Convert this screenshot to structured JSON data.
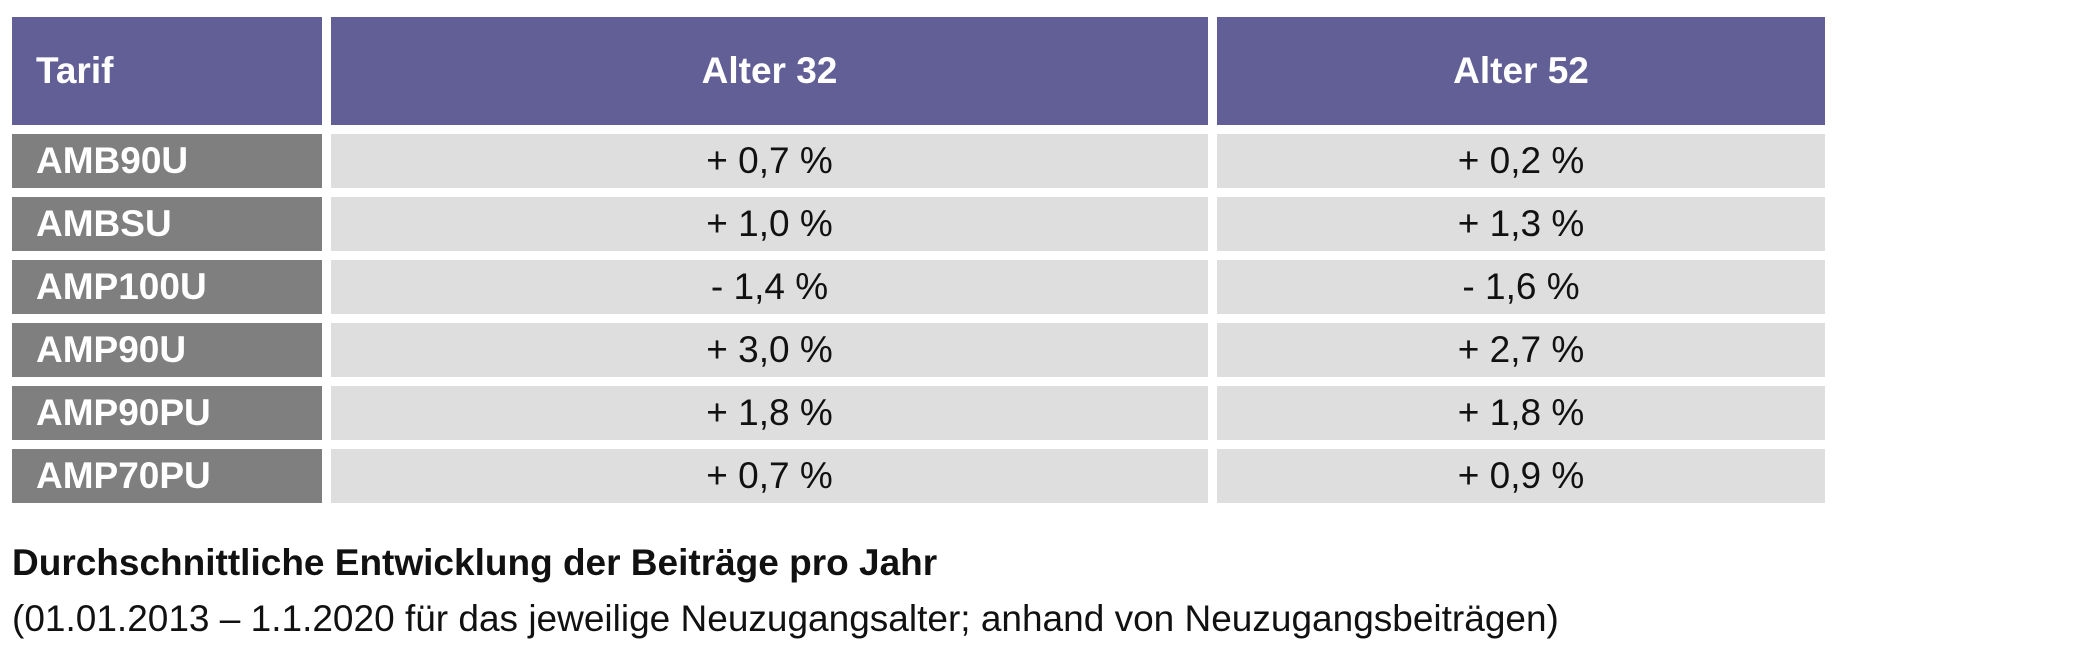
{
  "table": {
    "headers": [
      "Tarif",
      "Alter 32",
      "Alter 52"
    ],
    "rows": [
      {
        "tarif": "AMB90U",
        "alter32": "+ 0,7 %",
        "alter52": "+ 0,2 %"
      },
      {
        "tarif": "AMBSU",
        "alter32": "+ 1,0 %",
        "alter52": "+ 1,3 %"
      },
      {
        "tarif": "AMP100U",
        "alter32": "- 1,4 %",
        "alter52": "- 1,6 %"
      },
      {
        "tarif": "AMP90U",
        "alter32": "+ 3,0 %",
        "alter52": "+ 2,7 %"
      },
      {
        "tarif": "AMP90PU",
        "alter32": "+ 1,8 %",
        "alter52": "+ 1,8 %"
      },
      {
        "tarif": "AMP70PU",
        "alter32": "+ 0,7 %",
        "alter52": "+ 0,9 %"
      }
    ]
  },
  "caption": {
    "title": "Durchschnittliche Entwicklung der Beiträge pro Jahr",
    "subtitle": "(01.01.2013 – 1.1.2020 für das jeweilige Neuzugangsalter; anhand von Neuzugangsbeiträgen)"
  },
  "colors": {
    "header_bg": "#625f97",
    "tarif_bg": "#7f7f7f",
    "value_bg": "#dedede"
  }
}
